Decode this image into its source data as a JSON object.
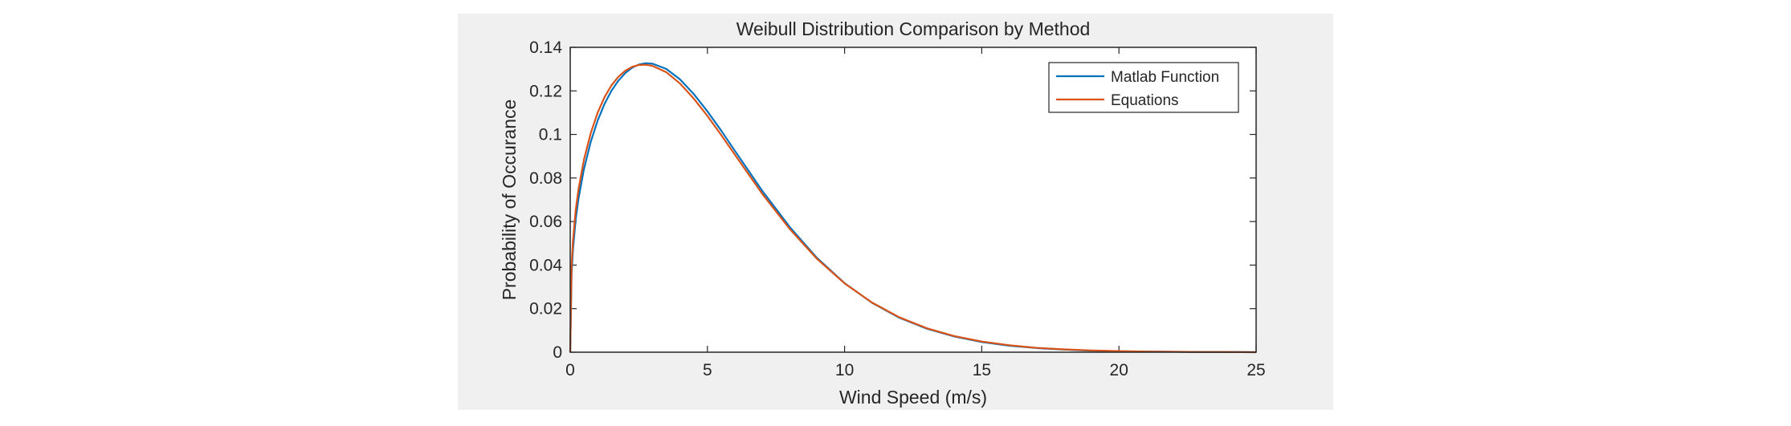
{
  "chart_data": {
    "type": "line",
    "title": "Weibull Distribution Comparison by Method",
    "xlabel": "Wind Speed (m/s)",
    "ylabel": "Probability of Occurance",
    "xlim": [
      0,
      25
    ],
    "ylim": [
      0,
      0.14
    ],
    "xticks": [
      0,
      5,
      10,
      15,
      20,
      25
    ],
    "xtick_labels": [
      "0",
      "5",
      "10",
      "15",
      "20",
      "25"
    ],
    "yticks": [
      0,
      0.02,
      0.04,
      0.06,
      0.08,
      0.1,
      0.12,
      0.14
    ],
    "ytick_labels": [
      "0",
      "0.02",
      "0.04",
      "0.06",
      "0.08",
      "0.1",
      "0.12",
      "0.14"
    ],
    "grid": false,
    "legend_position": "top-right",
    "figure_background": "#f0f0f0",
    "axes_background": "#ffffff",
    "x": [
      0,
      0.05,
      0.1,
      0.2,
      0.3,
      0.5,
      0.75,
      1,
      1.25,
      1.5,
      1.75,
      2,
      2.25,
      2.5,
      2.75,
      3,
      3.5,
      4,
      4.5,
      5,
      5.5,
      6,
      7,
      8,
      9,
      10,
      11,
      12,
      13,
      14,
      15,
      16,
      17,
      18,
      19,
      20,
      21,
      22,
      23,
      24,
      25
    ],
    "series": [
      {
        "name": "Matlab Function",
        "color": "#0072bd",
        "values": [
          0,
          0.0361,
          0.0472,
          0.0611,
          0.0704,
          0.0841,
          0.0967,
          0.1064,
          0.114,
          0.12,
          0.1246,
          0.1281,
          0.1306,
          0.1321,
          0.1327,
          0.1325,
          0.1301,
          0.1253,
          0.1186,
          0.1106,
          0.1018,
          0.0925,
          0.0741,
          0.0575,
          0.0432,
          0.0317,
          0.0227,
          0.0158,
          0.0108,
          0.0072,
          0.0047,
          0.003,
          0.0019,
          0.0012,
          0.0007,
          0.0004,
          0.0003,
          0.0002,
          0.0001,
          0.0001,
          0.0
        ]
      },
      {
        "name": "Equations",
        "color": "#d95319",
        "values": [
          0,
          0.0396,
          0.0511,
          0.0653,
          0.0747,
          0.0884,
          0.1007,
          0.11,
          0.1171,
          0.1225,
          0.1264,
          0.1292,
          0.131,
          0.1319,
          0.132,
          0.1315,
          0.1286,
          0.1234,
          0.1165,
          0.1085,
          0.0998,
          0.0907,
          0.0727,
          0.0566,
          0.0428,
          0.0316,
          0.0228,
          0.016,
          0.011,
          0.0074,
          0.0049,
          0.0032,
          0.002,
          0.0013,
          0.0008,
          0.0005,
          0.0003,
          0.0002,
          0.0001,
          0.0001,
          0.0
        ]
      }
    ]
  }
}
